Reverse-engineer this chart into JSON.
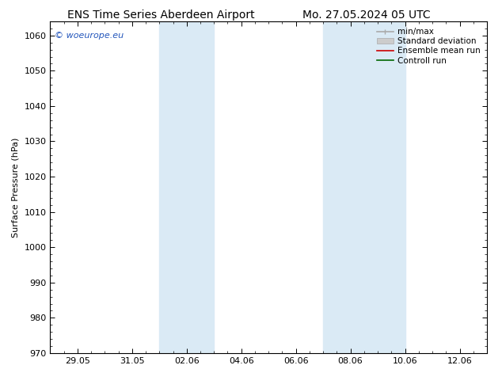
{
  "title_left": "ENS Time Series Aberdeen Airport",
  "title_right": "Mo. 27.05.2024 05 UTC",
  "ylabel": "Surface Pressure (hPa)",
  "ylim": [
    970,
    1060
  ],
  "yticks": [
    970,
    980,
    990,
    1000,
    1010,
    1020,
    1030,
    1040,
    1050,
    1060
  ],
  "xtick_labels": [
    "29.05",
    "31.05",
    "02.06",
    "04.06",
    "06.06",
    "08.06",
    "10.06",
    "12.06"
  ],
  "xtick_positions": [
    1,
    3,
    5,
    7,
    9,
    11,
    13,
    15
  ],
  "xlim": [
    0,
    16
  ],
  "shaded_bands": [
    {
      "x_start": 4.0,
      "x_end": 6.0,
      "color": "#daeaf5"
    },
    {
      "x_start": 10.0,
      "x_end": 13.0,
      "color": "#daeaf5"
    }
  ],
  "legend_entries": [
    {
      "label": "min/max",
      "color": "#aaaaaa",
      "lw": 1.2
    },
    {
      "label": "Standard deviation",
      "color": "#cccccc",
      "lw": 6
    },
    {
      "label": "Ensemble mean run",
      "color": "#cc0000",
      "lw": 1.2
    },
    {
      "label": "Controll run",
      "color": "#006600",
      "lw": 1.2
    }
  ],
  "watermark": "© woeurope.eu",
  "watermark_color": "#2255bb",
  "bg_color": "#ffffff",
  "plot_bg_color": "#ffffff",
  "tick_color": "#000000",
  "title_fontsize": 10,
  "label_fontsize": 8,
  "tick_fontsize": 8,
  "legend_fontsize": 7.5
}
